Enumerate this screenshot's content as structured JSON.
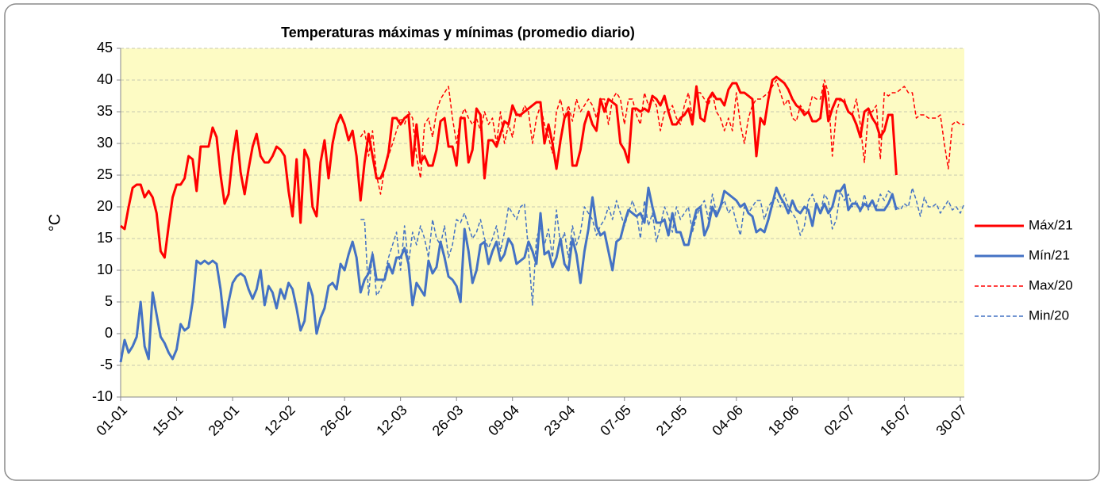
{
  "chart_data": {
    "type": "line",
    "title": "Temperaturas máximas y mínimas (promedio diario)",
    "y_label": "°C",
    "ylim": [
      -10,
      45
    ],
    "yticks": [
      -10,
      -5,
      0,
      5,
      10,
      15,
      20,
      25,
      30,
      35,
      40,
      45
    ],
    "grid": true,
    "legend": "right",
    "background": "#fdfbc4",
    "categories": [
      "01-01",
      null,
      null,
      null,
      null,
      null,
      null,
      null,
      null,
      null,
      null,
      null,
      null,
      null,
      "15-01",
      null,
      null,
      null,
      null,
      null,
      null,
      null,
      null,
      null,
      null,
      null,
      null,
      null,
      "29-01",
      null,
      null,
      null,
      null,
      null,
      null,
      null,
      null,
      null,
      null,
      null,
      null,
      null,
      "12-02",
      null,
      null,
      null,
      null,
      null,
      null,
      null,
      null,
      null,
      null,
      null,
      null,
      null,
      "26-02",
      null,
      null,
      null,
      null,
      null,
      null,
      null,
      null,
      null,
      null,
      null,
      null,
      null,
      "12-03",
      null,
      null,
      null,
      null,
      null,
      null,
      null,
      null,
      null,
      null,
      null,
      null,
      null,
      "26-03",
      null,
      null,
      null,
      null,
      null,
      null,
      null,
      null,
      null,
      null,
      null,
      null,
      null,
      "09-04",
      null,
      null,
      null,
      null,
      null,
      null,
      null,
      null,
      null,
      null,
      null,
      null,
      null,
      "23-04",
      null,
      null,
      null,
      null,
      null,
      null,
      null,
      null,
      null,
      null,
      null,
      null,
      null,
      "07-05",
      null,
      null,
      null,
      null,
      null,
      null,
      null,
      null,
      null,
      null,
      null,
      null,
      null,
      "21-05",
      null,
      null,
      null,
      null,
      null,
      null,
      null,
      null,
      null,
      null,
      null,
      null,
      null,
      "04-06",
      null,
      null,
      null,
      null,
      null,
      null,
      null,
      null,
      null,
      null,
      null,
      null,
      null,
      "18-06",
      null,
      null,
      null,
      null,
      null,
      null,
      null,
      null,
      null,
      null,
      null,
      null,
      null,
      "02-07",
      null,
      null,
      null,
      null,
      null,
      null,
      null,
      null,
      null,
      null,
      null,
      null,
      null,
      "16-07",
      null,
      null,
      null,
      null,
      null,
      null,
      null,
      null,
      null,
      null,
      null,
      null,
      null,
      "30-07",
      null
    ],
    "series": [
      {
        "name": "Máx/21",
        "color": "#ff0000",
        "dashed": false,
        "values": [
          17,
          16.5,
          20,
          23,
          23.5,
          23.5,
          21.5,
          22.5,
          21.5,
          19,
          13,
          12,
          17,
          21.5,
          23.5,
          23.5,
          24.5,
          28,
          27.5,
          22.5,
          29.5,
          29.5,
          29.5,
          32.5,
          31,
          25,
          20.5,
          22,
          28,
          32,
          25.5,
          22,
          26,
          29.5,
          31.5,
          28,
          27,
          27,
          28,
          29.5,
          29,
          28,
          22.5,
          18.5,
          27.5,
          17.5,
          29,
          27.5,
          20,
          18.5,
          27,
          30.5,
          24.5,
          30,
          33,
          34.5,
          33,
          30.5,
          32,
          28,
          21,
          27,
          31.5,
          28,
          24.5,
          24.5,
          26,
          28.5,
          34,
          34,
          33,
          34,
          34.5,
          26.5,
          33,
          27,
          28,
          26.5,
          26.5,
          29,
          33.5,
          34,
          29.5,
          29.5,
          26.5,
          34,
          34,
          27,
          29,
          35.5,
          34.5,
          24.5,
          30.5,
          30.5,
          29.5,
          31.5,
          33.5,
          33,
          36,
          34.5,
          34.5,
          35,
          35.5,
          36,
          36.5,
          36.5,
          30,
          33,
          30,
          26,
          30.5,
          34,
          35,
          26.5,
          26.5,
          29,
          33,
          35,
          33,
          32,
          37,
          35,
          37,
          36.5,
          36,
          30,
          29,
          27,
          35.5,
          35.5,
          35,
          35.5,
          35,
          37.5,
          37,
          36,
          37.5,
          35,
          33,
          33,
          34,
          34.5,
          35.5,
          33,
          39,
          34,
          33.5,
          37,
          38,
          37,
          37,
          36,
          38.5,
          39.5,
          39.5,
          38,
          38,
          37.5,
          37,
          28,
          34,
          33,
          37,
          40,
          40.5,
          40,
          39.5,
          38.5,
          37,
          36,
          35.5,
          34.5,
          35,
          33.5,
          33.5,
          34,
          39,
          33.5,
          35.5,
          37,
          37,
          36.5,
          35,
          34.5,
          33,
          31,
          35,
          35.5,
          34,
          33,
          31,
          32,
          34.5,
          34.5,
          25,
          null,
          null,
          null,
          null,
          null,
          null,
          null,
          null,
          null,
          null,
          null,
          null,
          null,
          null,
          null,
          null,
          null
        ]
      },
      {
        "name": "Mín/21",
        "color": "#4472c4",
        "dashed": false,
        "values": [
          -4.5,
          -1,
          -3,
          -2,
          -0.5,
          5,
          -2,
          -4,
          6.5,
          3,
          -0.5,
          -1.5,
          -3,
          -4,
          -2.5,
          1.5,
          0.5,
          1,
          5,
          11.5,
          11,
          11.5,
          11,
          11.5,
          11,
          7,
          1,
          5,
          8,
          9,
          9.5,
          9,
          7,
          5.5,
          7,
          10,
          4.5,
          7.5,
          6.5,
          4,
          7,
          5.5,
          8,
          7,
          4,
          0.5,
          2,
          8,
          6,
          0,
          2.5,
          4,
          7.5,
          8,
          7,
          11,
          10,
          12.5,
          14.5,
          12,
          6.5,
          8.5,
          9.5,
          12.5,
          8.5,
          8.5,
          8.5,
          11,
          9.5,
          12,
          12,
          13.5,
          11,
          4.5,
          8,
          7,
          6,
          11.5,
          9.5,
          10.5,
          14.5,
          12,
          9,
          8.5,
          7.5,
          5,
          16.5,
          13,
          8,
          10,
          14,
          14.5,
          11,
          13,
          14.5,
          11.5,
          12.5,
          15,
          14,
          11,
          11.5,
          12,
          14.5,
          13,
          11,
          19,
          12.5,
          13,
          10.5,
          12,
          15,
          11,
          10,
          15,
          12.5,
          8,
          13,
          16.5,
          21.5,
          17,
          15.5,
          16,
          13,
          10,
          14.5,
          15,
          17.5,
          19.5,
          19,
          18.5,
          19,
          17.5,
          23,
          20,
          17.5,
          17.5,
          18,
          15.5,
          19,
          16,
          16,
          14,
          14,
          17,
          19.5,
          20,
          15.5,
          17,
          20,
          18.5,
          20,
          22.5,
          22,
          21.5,
          21,
          20,
          20.5,
          19,
          18.5,
          16,
          16.5,
          16,
          18,
          20.5,
          23,
          21.5,
          20.5,
          19,
          21,
          19.5,
          19,
          20,
          19.5,
          17,
          20.5,
          19,
          20.5,
          19,
          20,
          22.5,
          22.5,
          23.5,
          19.5,
          20.5,
          20.5,
          19.5,
          20.5,
          20,
          21,
          19.5,
          19.5,
          19.5,
          20.5,
          22,
          19.5,
          null,
          null,
          null,
          null,
          null,
          null,
          null,
          null,
          null,
          null,
          null,
          null,
          null,
          null,
          null,
          null,
          null
        ]
      },
      {
        "name": "Max/20",
        "color": "#ff0000",
        "dashed": true,
        "values": [
          null,
          null,
          null,
          null,
          null,
          null,
          null,
          null,
          null,
          null,
          null,
          null,
          null,
          null,
          null,
          null,
          null,
          null,
          null,
          null,
          null,
          null,
          null,
          null,
          null,
          null,
          null,
          null,
          null,
          null,
          null,
          null,
          null,
          null,
          null,
          null,
          null,
          null,
          null,
          null,
          null,
          null,
          null,
          null,
          null,
          null,
          null,
          null,
          null,
          null,
          null,
          null,
          null,
          null,
          null,
          null,
          null,
          null,
          null,
          null,
          31,
          32,
          28,
          32,
          25,
          22,
          26,
          28,
          30,
          32,
          34,
          33,
          35,
          34,
          28,
          24.5,
          33,
          34,
          31,
          35,
          37,
          38,
          39,
          34,
          30,
          34,
          35.5,
          34,
          33,
          34,
          32,
          35,
          33,
          34,
          30,
          35,
          30,
          33,
          31,
          35,
          34,
          36,
          35,
          30,
          34,
          36,
          33,
          31,
          28.5,
          35,
          37,
          34,
          36,
          33.5,
          37,
          35,
          36,
          37,
          36,
          34,
          37,
          37,
          33,
          37,
          38,
          37,
          33,
          37,
          37,
          34.5,
          33,
          38,
          36,
          37,
          36,
          32,
          35,
          35,
          36,
          34,
          33,
          36,
          38,
          34,
          38,
          38,
          37,
          36,
          38,
          35,
          34,
          32,
          34,
          32,
          38,
          33,
          30,
          34,
          36,
          37,
          37,
          37.5,
          38,
          39,
          40,
          38,
          36,
          37,
          34,
          33.5,
          36,
          35,
          35,
          37.5,
          37,
          37,
          40,
          38,
          28,
          35,
          37,
          37,
          35,
          34.5,
          37,
          33,
          27,
          35,
          35,
          36,
          27.5,
          38,
          37.5,
          38,
          38,
          38.5,
          39,
          38,
          38,
          34,
          34.5,
          34.5,
          34,
          34,
          34,
          34.5,
          30,
          26,
          33,
          33.5,
          33,
          33
        ]
      },
      {
        "name": "Min/20",
        "color": "#4472c4",
        "dashed": true,
        "values": [
          null,
          null,
          null,
          null,
          null,
          null,
          null,
          null,
          null,
          null,
          null,
          null,
          null,
          null,
          null,
          null,
          null,
          null,
          null,
          null,
          null,
          null,
          null,
          null,
          null,
          null,
          null,
          null,
          null,
          null,
          null,
          null,
          null,
          null,
          null,
          null,
          null,
          null,
          null,
          null,
          null,
          null,
          null,
          null,
          null,
          null,
          null,
          null,
          null,
          null,
          null,
          null,
          null,
          null,
          null,
          null,
          null,
          null,
          null,
          null,
          18,
          18,
          6,
          13,
          6,
          7,
          9,
          12,
          14,
          16,
          10,
          17,
          11,
          16,
          14,
          17,
          15,
          12,
          18,
          15,
          14,
          17,
          12,
          14,
          18,
          17.5,
          19,
          17,
          15,
          16,
          18,
          15,
          13.5,
          15,
          17,
          13,
          16,
          20,
          19,
          18,
          20,
          20.5,
          13,
          4.5,
          15,
          17,
          14,
          16.5,
          12,
          19.5,
          14,
          16,
          12,
          17,
          14,
          16,
          20,
          19,
          18,
          15.5,
          17,
          18,
          20,
          18,
          21,
          19,
          17,
          19,
          21,
          19,
          15,
          21,
          17,
          19,
          14.5,
          17,
          20,
          18.5,
          16,
          20,
          18,
          19,
          20,
          16,
          18.5,
          20,
          21,
          18,
          22,
          19,
          20,
          21,
          19,
          20,
          17.5,
          15.5,
          20,
          19,
          20,
          21,
          21,
          18,
          20,
          21,
          21.5,
          20,
          22,
          20,
          19,
          18,
          15.5,
          17,
          21,
          22,
          20,
          19,
          22,
          21,
          16.5,
          18,
          22.5,
          21,
          22,
          20,
          21,
          19,
          22,
          19.5,
          21,
          20,
          22,
          21,
          22.5,
          22,
          20,
          19.5,
          20.5,
          20,
          23,
          21,
          18.5,
          21.5,
          20,
          20,
          20.5,
          19,
          20,
          21,
          19.5,
          20,
          19,
          20.5
        ]
      }
    ]
  }
}
